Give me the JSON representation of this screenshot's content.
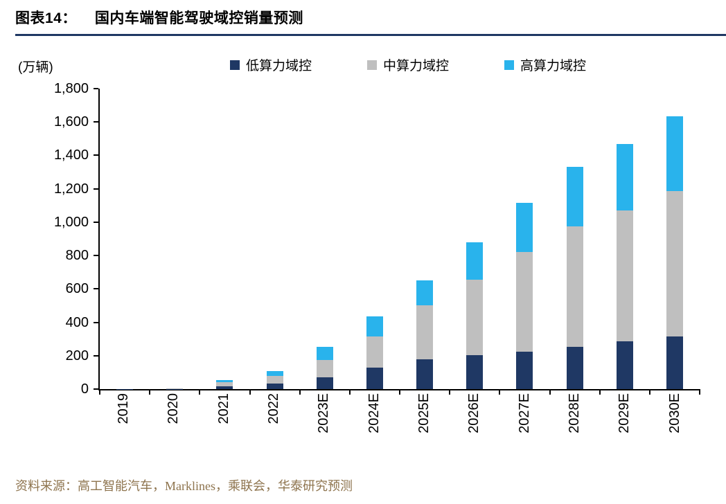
{
  "header": {
    "label": "图表14：",
    "title": "国内车端智能驾驶域控销量预测",
    "rule_color": "#1F3864"
  },
  "chart_data": {
    "type": "bar",
    "stacked": true,
    "unit_label": "(万辆)",
    "categories": [
      "2019",
      "2020",
      "2021",
      "2022",
      "2023E",
      "2024E",
      "2025E",
      "2026E",
      "2027E",
      "2028E",
      "2029E",
      "2030E"
    ],
    "series": [
      {
        "name": "低算力域控",
        "color": "#1F3864",
        "values": [
          1,
          2,
          18,
          35,
          70,
          130,
          180,
          205,
          225,
          255,
          285,
          315
        ]
      },
      {
        "name": "中算力域控",
        "color": "#BFBFBF",
        "values": [
          1,
          2,
          25,
          45,
          105,
          185,
          320,
          450,
          595,
          720,
          785,
          870
        ]
      },
      {
        "name": "高算力域控",
        "color": "#29B3EC",
        "values": [
          0,
          1,
          12,
          28,
          80,
          120,
          150,
          225,
          295,
          355,
          400,
          450
        ]
      }
    ],
    "totals": [
      2,
      5,
      55,
      108,
      255,
      435,
      650,
      880,
      1115,
      1330,
      1470,
      1635
    ],
    "ylim": [
      0,
      1800
    ],
    "ytick_step": 200,
    "legend_position": "top",
    "grid": false,
    "axis_color": "#000000"
  },
  "footer": {
    "source": "资料来源：高工智能汽车，Marklines，乘联会，华泰研究预测",
    "color": "#8E744E"
  }
}
